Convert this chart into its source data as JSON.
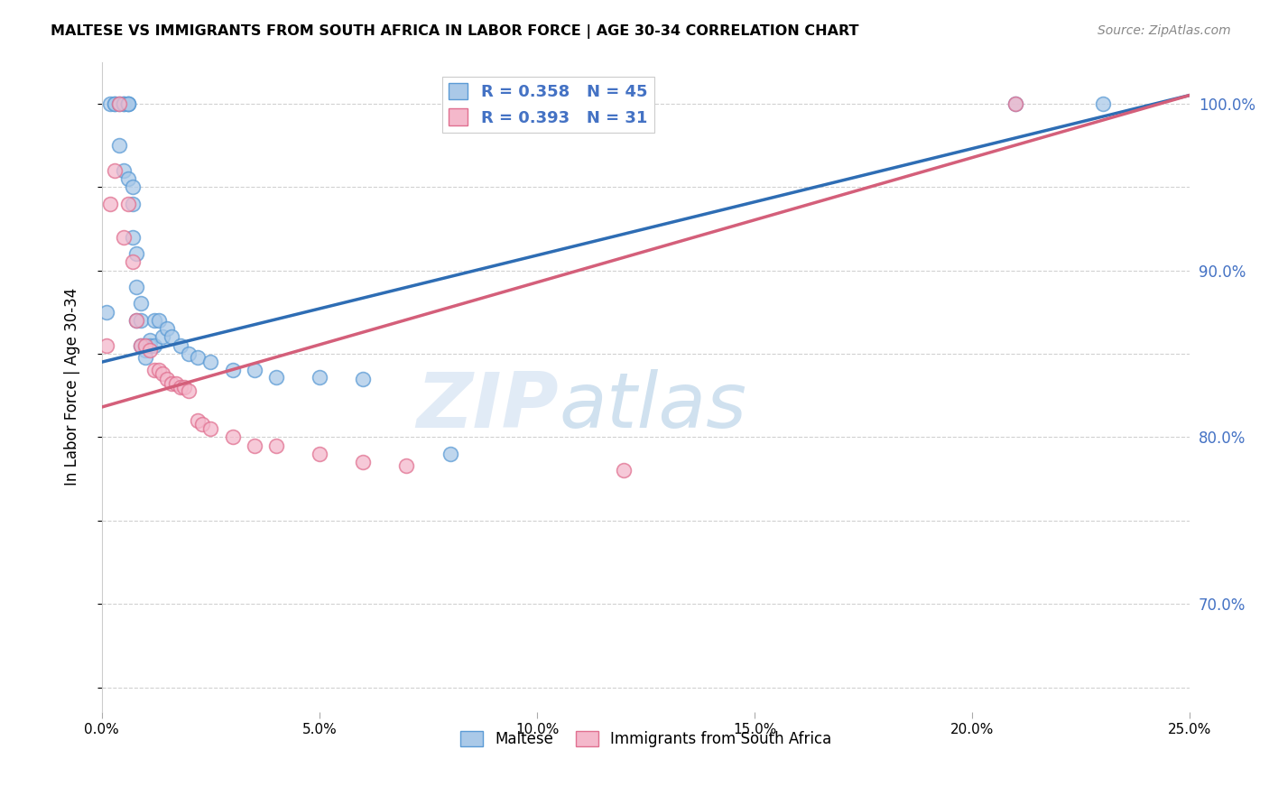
{
  "title": "MALTESE VS IMMIGRANTS FROM SOUTH AFRICA IN LABOR FORCE | AGE 30-34 CORRELATION CHART",
  "source": "Source: ZipAtlas.com",
  "ylabel": "In Labor Force | Age 30-34",
  "watermark_zip": "ZIP",
  "watermark_atlas": "atlas",
  "legend_label1": "Maltese",
  "legend_label2": "Immigrants from South Africa",
  "r1": "0.358",
  "n1": "45",
  "r2": "0.393",
  "n2": "31",
  "xmin": 0.0,
  "xmax": 0.25,
  "ymin": 0.635,
  "ymax": 1.025,
  "color_blue_fill": "#aac9e8",
  "color_blue_edge": "#5b9bd5",
  "color_pink_fill": "#f4b8cb",
  "color_pink_edge": "#e07090",
  "color_trendline_blue": "#2e6db4",
  "color_trendline_pink": "#d45f7a",
  "color_right_axis": "#4472c4",
  "blue_x": [
    0.001,
    0.002,
    0.003,
    0.003,
    0.004,
    0.004,
    0.005,
    0.005,
    0.005,
    0.006,
    0.006,
    0.006,
    0.006,
    0.007,
    0.007,
    0.007,
    0.008,
    0.008,
    0.008,
    0.009,
    0.009,
    0.009,
    0.01,
    0.01,
    0.01,
    0.011,
    0.011,
    0.012,
    0.012,
    0.013,
    0.014,
    0.015,
    0.016,
    0.018,
    0.02,
    0.022,
    0.025,
    0.03,
    0.035,
    0.04,
    0.05,
    0.06,
    0.08,
    0.21,
    0.23
  ],
  "blue_y": [
    0.875,
    1.0,
    1.0,
    1.0,
    1.0,
    0.975,
    1.0,
    1.0,
    0.96,
    1.0,
    1.0,
    1.0,
    0.955,
    0.95,
    0.94,
    0.92,
    0.91,
    0.89,
    0.87,
    0.88,
    0.87,
    0.855,
    0.855,
    0.852,
    0.848,
    0.858,
    0.855,
    0.855,
    0.87,
    0.87,
    0.86,
    0.865,
    0.86,
    0.855,
    0.85,
    0.848,
    0.845,
    0.84,
    0.84,
    0.836,
    0.836,
    0.835,
    0.79,
    1.0,
    1.0
  ],
  "pink_x": [
    0.001,
    0.002,
    0.003,
    0.004,
    0.005,
    0.006,
    0.007,
    0.008,
    0.009,
    0.01,
    0.011,
    0.012,
    0.013,
    0.014,
    0.015,
    0.016,
    0.017,
    0.018,
    0.019,
    0.02,
    0.022,
    0.023,
    0.025,
    0.03,
    0.035,
    0.04,
    0.05,
    0.06,
    0.07,
    0.12,
    0.21
  ],
  "pink_y": [
    0.855,
    0.94,
    0.96,
    1.0,
    0.92,
    0.94,
    0.905,
    0.87,
    0.855,
    0.855,
    0.852,
    0.84,
    0.84,
    0.838,
    0.835,
    0.832,
    0.832,
    0.83,
    0.83,
    0.828,
    0.81,
    0.808,
    0.805,
    0.8,
    0.795,
    0.795,
    0.79,
    0.785,
    0.783,
    0.78,
    1.0
  ],
  "yticks": [
    0.65,
    0.7,
    0.75,
    0.8,
    0.85,
    0.9,
    0.95,
    1.0
  ],
  "xticks": [
    0.0,
    0.05,
    0.1,
    0.15,
    0.2,
    0.25
  ],
  "xtick_labels": [
    "0.0%",
    "5.0%",
    "10.0%",
    "15.0%",
    "20.0%",
    "25.0%"
  ],
  "right_yticks": [
    0.7,
    0.8,
    0.9,
    1.0
  ],
  "right_ytick_labels": [
    "70.0%",
    "80.0%",
    "90.0%",
    "100.0%"
  ],
  "trendline_blue_x0": 0.0,
  "trendline_blue_y0": 0.845,
  "trendline_blue_x1": 0.25,
  "trendline_blue_y1": 1.005,
  "trendline_pink_x0": 0.0,
  "trendline_pink_y0": 0.818,
  "trendline_pink_x1": 0.25,
  "trendline_pink_y1": 1.005
}
